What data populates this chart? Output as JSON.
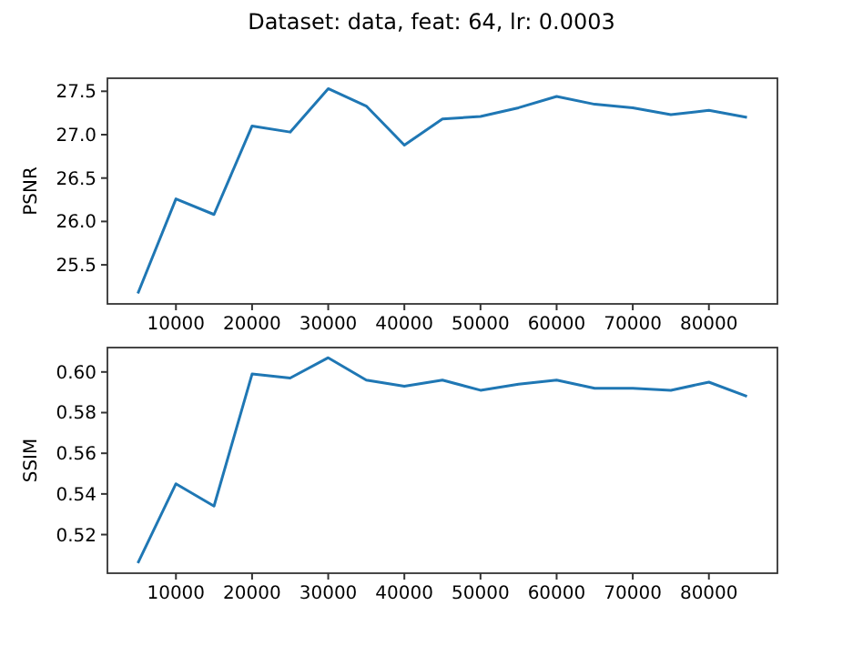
{
  "chart_data": [
    {
      "type": "line",
      "title": "Dataset: data, feat: 64, lr: 0.0003",
      "ylabel": "PSNR",
      "x": [
        5000,
        10000,
        15000,
        20000,
        25000,
        30000,
        35000,
        40000,
        45000,
        50000,
        55000,
        60000,
        65000,
        70000,
        75000,
        80000,
        85000
      ],
      "series": [
        {
          "color": "#1f77b4",
          "values": [
            25.17,
            26.26,
            26.08,
            27.1,
            27.03,
            27.53,
            27.33,
            26.88,
            27.18,
            27.21,
            27.31,
            27.44,
            27.35,
            27.31,
            27.23,
            27.28,
            27.2
          ]
        }
      ],
      "xlim": [
        1000,
        89000
      ],
      "xticks": [
        10000,
        20000,
        30000,
        40000,
        50000,
        60000,
        70000,
        80000
      ],
      "ylim": [
        25.05,
        27.65
      ],
      "yticks": [
        {
          "value": 25.5,
          "label": "25.5"
        },
        {
          "value": 26,
          "label": "26.0"
        },
        {
          "value": 26.5,
          "label": "26.5"
        },
        {
          "value": 27,
          "label": "27.0"
        },
        {
          "value": 27.5,
          "label": "27.5"
        }
      ]
    },
    {
      "type": "line",
      "ylabel": "SSIM",
      "x": [
        5000,
        10000,
        15000,
        20000,
        25000,
        30000,
        35000,
        40000,
        45000,
        50000,
        55000,
        60000,
        65000,
        70000,
        75000,
        80000,
        85000
      ],
      "series": [
        {
          "color": "#1f77b4",
          "values": [
            0.506,
            0.545,
            0.534,
            0.599,
            0.597,
            0.607,
            0.596,
            0.593,
            0.596,
            0.591,
            0.594,
            0.596,
            0.592,
            0.592,
            0.591,
            0.595,
            0.588
          ]
        }
      ],
      "xlim": [
        1000,
        89000
      ],
      "xticks": [
        10000,
        20000,
        30000,
        40000,
        50000,
        60000,
        70000,
        80000
      ],
      "ylim": [
        0.501,
        0.612
      ],
      "yticks": [
        {
          "value": 0.52,
          "label": "0.52"
        },
        {
          "value": 0.54,
          "label": "0.54"
        },
        {
          "value": 0.56,
          "label": "0.56"
        },
        {
          "value": 0.58,
          "label": "0.58"
        },
        {
          "value": 0.6,
          "label": "0.60"
        }
      ]
    }
  ]
}
